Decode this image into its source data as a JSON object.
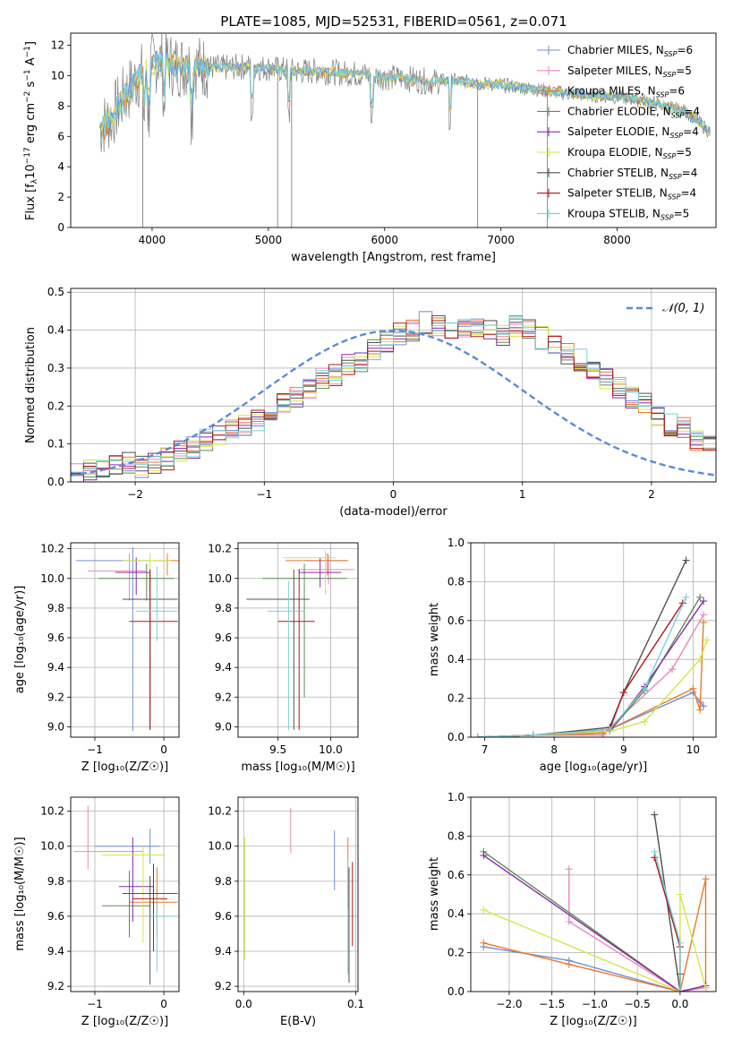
{
  "figure": {
    "title": "PLATE=1085, MJD=52531, FIBERID=0561, z=0.071"
  },
  "models": [
    {
      "name": "Chabrier MILES",
      "nssp": "6",
      "color": "#6f8fd6"
    },
    {
      "name": "Salpeter MILES",
      "nssp": "5",
      "color": "#e68ab8"
    },
    {
      "name": "Kroupa MILES",
      "nssp": "6",
      "color": "#e9792c"
    },
    {
      "name": "Chabrier ELODIE",
      "nssp": "4",
      "color": "#5c8a58"
    },
    {
      "name": "Salpeter ELODIE",
      "nssp": "4",
      "color": "#8a2aa6"
    },
    {
      "name": "Kroupa ELODIE",
      "nssp": "5",
      "color": "#d4e64a"
    },
    {
      "name": "Chabrier STELIB",
      "nssp": "4",
      "color": "#505050"
    },
    {
      "name": "Salpeter STELIB",
      "nssp": "4",
      "color": "#b01818"
    },
    {
      "name": "Kroupa STELIB",
      "nssp": "5",
      "color": "#7ad0d8"
    }
  ],
  "chart_data": [
    {
      "id": "spectrum",
      "type": "line",
      "xlabel": "wavelength [Angstrom, rest frame]",
      "ylabel_main": "Flux [f",
      "ylabel_sub": "λ",
      "ylabel_rest": "10",
      "ylabel_exp1": "−17",
      "ylabel_units": " erg cm",
      "ylabel_exp2": "−2",
      "ylabel_s": " s",
      "ylabel_exp3": "−1",
      "ylabel_a": " A",
      "ylabel_exp4": "−1",
      "ylabel_end": "]",
      "xlim": [
        3300,
        8850
      ],
      "ylim": [
        0,
        12.8
      ],
      "xticks": [
        4000,
        5000,
        6000,
        7000,
        8000
      ],
      "yticks": [
        0,
        2,
        4,
        6,
        8,
        10,
        12
      ],
      "continuum": {
        "x": [
          3550,
          3650,
          3750,
          3850,
          3950,
          4050,
          4200,
          4400,
          4600,
          4800,
          5000,
          5200,
          5400,
          5600,
          5800,
          6000,
          6200,
          6400,
          6600,
          6800,
          7000,
          7200,
          7400,
          7600,
          7800,
          8000,
          8200,
          8400,
          8600,
          8800
        ],
        "y": [
          6.6,
          7.2,
          8.5,
          9.6,
          10.4,
          11.0,
          10.7,
          10.6,
          10.5,
          10.6,
          10.5,
          10.3,
          10.3,
          10.2,
          10.1,
          9.9,
          9.8,
          9.6,
          9.7,
          9.5,
          9.4,
          9.2,
          9.0,
          8.8,
          8.7,
          8.6,
          8.4,
          8.0,
          7.6,
          6.3
        ]
      },
      "absorption_lines": [
        3934,
        3969,
        4102,
        4340,
        4861,
        5175,
        5890,
        6563
      ],
      "spikes": [
        3920,
        5080,
        5200,
        6800,
        7400
      ]
    },
    {
      "id": "residuals",
      "type": "line",
      "xlabel": "(data-model)/error",
      "ylabel": "Normed distribution",
      "xlim": [
        -2.5,
        2.5
      ],
      "ylim": [
        0,
        0.51
      ],
      "xticks": [
        -2,
        -1,
        0,
        1,
        2
      ],
      "yticks": [
        0.0,
        0.1,
        0.2,
        0.3,
        0.4,
        0.5
      ],
      "ytick_labels": [
        "0.0",
        "0.1",
        "0.2",
        "0.3",
        "0.4",
        "0.5"
      ],
      "legend_label": "𝒩(0, 1)",
      "bin_width": 0.1,
      "bin_start": -2.5,
      "hist_values": [
        0.02,
        0.03,
        0.03,
        0.04,
        0.05,
        0.04,
        0.05,
        0.06,
        0.08,
        0.09,
        0.11,
        0.12,
        0.14,
        0.15,
        0.16,
        0.18,
        0.21,
        0.22,
        0.25,
        0.27,
        0.28,
        0.31,
        0.32,
        0.35,
        0.37,
        0.39,
        0.4,
        0.42,
        0.41,
        0.4,
        0.4,
        0.41,
        0.4,
        0.39,
        0.41,
        0.4,
        0.38,
        0.36,
        0.34,
        0.32,
        0.29,
        0.27,
        0.25,
        0.22,
        0.21,
        0.17,
        0.15,
        0.14,
        0.11,
        0.1,
        0.08,
        0.07,
        0.07,
        0.06,
        0.05,
        0.05,
        0.04,
        0.04,
        0.04,
        0.03
      ]
    },
    {
      "id": "age-vs-z",
      "type": "scatter",
      "xlabel": "Z [log₁₀(Z/Z☉)]",
      "ylabel": "age  [log₁₀(age/yr)]",
      "xlim": [
        -1.35,
        0.22
      ],
      "ylim": [
        8.93,
        10.24
      ],
      "xticks": [
        -1,
        0
      ],
      "yticks": [
        9.0,
        9.2,
        9.4,
        9.6,
        9.8,
        10.0,
        10.2
      ],
      "xtick_labels": [
        "−1",
        "0"
      ],
      "ytick_labels": [
        "9.0",
        "9.2",
        "9.4",
        "9.6",
        "9.8",
        "10.0",
        "10.2"
      ]
    },
    {
      "id": "age-vs-mass",
      "type": "scatter",
      "xlabel": "mass [log₁₀(M/M☉)]",
      "xlim": [
        9.12,
        10.26
      ],
      "ylim": [
        8.93,
        10.24
      ],
      "xticks": [
        9.5,
        10.0
      ],
      "yticks": [
        9.0,
        9.2,
        9.4,
        9.6,
        9.8,
        10.0,
        10.2
      ],
      "xtick_labels": [
        "9.5",
        "10.0"
      ],
      "ytick_labels": [
        "9.0",
        "9.2",
        "9.4",
        "9.6",
        "9.8",
        "10.0",
        "10.2"
      ]
    },
    {
      "id": "weight-vs-age",
      "type": "line",
      "xlabel": "age  [log₁₀(age/yr)]",
      "ylabel": "mass weight",
      "xlim": [
        6.8,
        10.33
      ],
      "ylim": [
        0,
        1.0
      ],
      "xticks": [
        7,
        8,
        9,
        10
      ],
      "yticks": [
        0.0,
        0.2,
        0.4,
        0.6,
        0.8,
        1.0
      ],
      "ytick_labels": [
        "0.0",
        "0.2",
        "0.4",
        "0.6",
        "0.8",
        "1.0"
      ],
      "series": [
        {
          "x": [
            6.9,
            7.7,
            8.7,
            8.8,
            10.0,
            10.1,
            10.15
          ],
          "y": [
            0.0,
            0.01,
            0.02,
            0.04,
            0.23,
            0.18,
            0.16
          ]
        },
        {
          "x": [
            6.9,
            7.7,
            8.7,
            8.8,
            9.7,
            10.15
          ],
          "y": [
            0.0,
            0.01,
            0.01,
            0.05,
            0.35,
            0.63
          ]
        },
        {
          "x": [
            6.9,
            7.7,
            8.7,
            8.8,
            10.0,
            10.1,
            10.15
          ],
          "y": [
            0.0,
            0.01,
            0.02,
            0.04,
            0.25,
            0.14,
            0.59
          ]
        },
        {
          "x": [
            6.9,
            7.7,
            8.8,
            9.3,
            10.1
          ],
          "y": [
            0.0,
            0.01,
            0.03,
            0.24,
            0.72
          ]
        },
        {
          "x": [
            6.9,
            7.7,
            8.8,
            9.3,
            10.15
          ],
          "y": [
            0.0,
            0.01,
            0.03,
            0.26,
            0.7
          ]
        },
        {
          "x": [
            6.9,
            7.7,
            8.8,
            9.3,
            10.1,
            10.2
          ],
          "y": [
            0.0,
            0.01,
            0.03,
            0.08,
            0.4,
            0.5
          ]
        },
        {
          "x": [
            6.9,
            7.7,
            8.8,
            9.0,
            9.9
          ],
          "y": [
            0.0,
            0.01,
            0.05,
            0.23,
            0.91
          ]
        },
        {
          "x": [
            6.9,
            7.7,
            8.8,
            9.0,
            9.85
          ],
          "y": [
            0.0,
            0.01,
            0.04,
            0.23,
            0.69
          ]
        },
        {
          "x": [
            6.9,
            7.7,
            8.8,
            9.3,
            9.9
          ],
          "y": [
            0.0,
            0.01,
            0.04,
            0.25,
            0.72
          ]
        }
      ]
    },
    {
      "id": "mass-vs-z",
      "type": "scatter",
      "xlabel": "Z [log₁₀(Z/Z☉)]",
      "ylabel": "mass [log₁₀(M/M☉)]",
      "xlim": [
        -1.35,
        0.22
      ],
      "ylim": [
        9.17,
        10.28
      ],
      "xticks": [
        -1,
        0
      ],
      "yticks": [
        9.2,
        9.4,
        9.6,
        9.8,
        10.0,
        10.2
      ],
      "xtick_labels": [
        "−1",
        "0"
      ],
      "ytick_labels": [
        "9.2",
        "9.4",
        "9.6",
        "9.8",
        "10.0",
        "10.2"
      ]
    },
    {
      "id": "mass-vs-ebv",
      "type": "scatter",
      "xlabel": "E(B-V)",
      "xlim": [
        -0.005,
        0.102
      ],
      "ylim": [
        9.17,
        10.28
      ],
      "xticks": [
        0.0,
        0.1
      ],
      "yticks": [
        9.2,
        9.4,
        9.6,
        9.8,
        10.0,
        10.2
      ],
      "xtick_labels": [
        "0.0",
        "0.1"
      ],
      "ytick_labels": [
        "9.2",
        "9.4",
        "9.6",
        "9.8",
        "10.0",
        "10.2"
      ]
    },
    {
      "id": "weight-vs-z",
      "type": "line",
      "xlabel": "Z [log₁₀(Z/Z☉)]",
      "ylabel": "mass weight",
      "xlim": [
        -2.45,
        0.42
      ],
      "ylim": [
        0,
        1.0
      ],
      "xticks": [
        -2.0,
        -1.5,
        -1.0,
        -0.5,
        0.0
      ],
      "yticks": [
        0.0,
        0.2,
        0.4,
        0.6,
        0.8,
        1.0
      ],
      "xtick_labels": [
        "−2.0",
        "−1.5",
        "−1.0",
        "−0.5",
        "0.0"
      ],
      "ytick_labels": [
        "0.0",
        "0.2",
        "0.4",
        "0.6",
        "0.8",
        "1.0"
      ],
      "series": [
        {
          "x": [
            -2.3,
            -1.3,
            0.0,
            0.3
          ],
          "y": [
            0.23,
            0.16,
            0.0,
            0.02
          ]
        },
        {
          "x": [
            -1.3,
            -1.3,
            0.0,
            0.3
          ],
          "y": [
            0.63,
            0.36,
            0.0,
            0.02
          ]
        },
        {
          "x": [
            -2.3,
            -1.3,
            0.0,
            0.3,
            0.3
          ],
          "y": [
            0.25,
            0.14,
            0.0,
            0.58,
            0.02
          ]
        },
        {
          "x": [
            -2.3,
            0.0,
            0.3
          ],
          "y": [
            0.72,
            0.0,
            0.03
          ]
        },
        {
          "x": [
            -2.3,
            0.0,
            0.3
          ],
          "y": [
            0.7,
            0.0,
            0.03
          ]
        },
        {
          "x": [
            -2.3,
            0.0,
            0.0,
            0.3
          ],
          "y": [
            0.42,
            0.0,
            0.5,
            0.02
          ]
        },
        {
          "x": [
            -0.3,
            0.0,
            0.0
          ],
          "y": [
            0.91,
            0.0,
            0.09
          ]
        },
        {
          "x": [
            -0.3,
            0.0,
            0.0
          ],
          "y": [
            0.69,
            0.23,
            0.0
          ]
        },
        {
          "x": [
            -0.3,
            0.0,
            0.0
          ],
          "y": [
            0.72,
            0.25,
            0.0
          ]
        }
      ]
    }
  ]
}
